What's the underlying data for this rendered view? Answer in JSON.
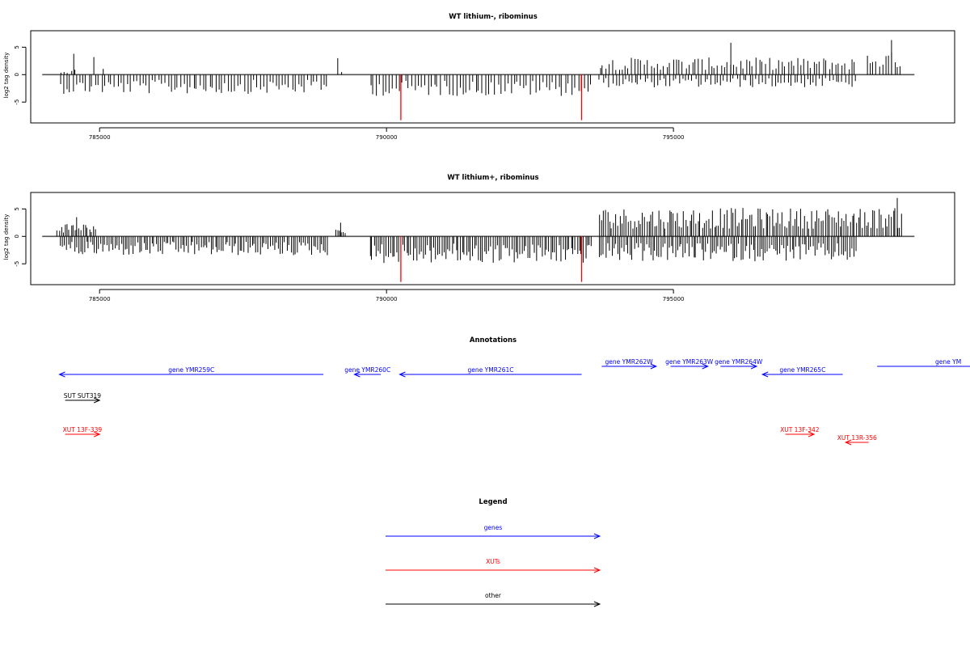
{
  "colors": {
    "gene": "#0000ff",
    "xut": "#ff0000",
    "other": "#000000",
    "marker": "#ff0000",
    "bar": "#000000",
    "axis": "#000000"
  },
  "chart_data": [
    {
      "type": "bar",
      "title": "WT lithium-, ribominus",
      "ylabel": "log2 tag density",
      "x_ticks": [
        {
          "value": 785000,
          "label": "785000"
        },
        {
          "value": 790000,
          "label": "790000"
        },
        {
          "value": 795000,
          "label": "795000"
        }
      ],
      "y_ticks": [
        {
          "value": 5,
          "label": "5"
        },
        {
          "value": 0,
          "label": "0"
        },
        {
          "value": -5,
          "label": "-5"
        }
      ],
      "xlim": [
        783800,
        799900
      ],
      "ylim": [
        -8.8,
        8.0
      ],
      "markers": [
        790250,
        793400
      ],
      "positive_segments": [
        [
          784300,
          784600,
          0.8
        ],
        [
          785050,
          785100,
          1.0
        ],
        [
          789200,
          789250,
          1.2
        ],
        [
          793700,
          798200,
          2.4
        ],
        [
          798350,
          799000,
          3.2
        ]
      ],
      "negative_segments": [
        [
          784300,
          789000,
          2.7
        ],
        [
          789700,
          793600,
          3.0
        ],
        [
          793700,
          798200,
          1.8
        ]
      ],
      "spikes": [
        [
          784550,
          3.8
        ],
        [
          784900,
          3.2
        ],
        [
          789150,
          3.0
        ],
        [
          798800,
          6.3
        ],
        [
          796000,
          5.8
        ]
      ],
      "series": [
        {
          "start": 784000,
          "end": 799200
        }
      ]
    },
    {
      "type": "bar",
      "title": "WT lithium+, ribominus",
      "ylabel": "log2 tag density",
      "x_ticks": [
        {
          "value": 785000,
          "label": "785000"
        },
        {
          "value": 790000,
          "label": "790000"
        },
        {
          "value": 795000,
          "label": "795000"
        }
      ],
      "y_ticks": [
        {
          "value": 5,
          "label": "5"
        },
        {
          "value": 0,
          "label": "0"
        },
        {
          "value": -5,
          "label": "-5"
        }
      ],
      "xlim": [
        783800,
        799900
      ],
      "ylim": [
        -8.8,
        8.0
      ],
      "markers": [
        790250,
        793400
      ],
      "positive_segments": [
        [
          784250,
          784950,
          1.9
        ],
        [
          789100,
          789300,
          1.0
        ],
        [
          793700,
          799000,
          4.0
        ]
      ],
      "negative_segments": [
        [
          784300,
          789000,
          2.7
        ],
        [
          789700,
          793600,
          3.8
        ],
        [
          793700,
          798200,
          3.5
        ]
      ],
      "spikes": [
        [
          784600,
          3.5
        ],
        [
          789200,
          2.5
        ],
        [
          798900,
          7.0
        ]
      ],
      "series": [
        {
          "start": 784000,
          "end": 799200
        }
      ]
    }
  ],
  "annotations": {
    "title": "Annotations",
    "items": [
      {
        "label": "gene YMR259C",
        "kind": "gene",
        "start": 784300,
        "end": 788900,
        "dir": "left",
        "row": 1
      },
      {
        "label": "gene YMR260C",
        "kind": "gene",
        "start": 789440,
        "end": 789900,
        "dir": "left",
        "row": 1
      },
      {
        "label": "gene YMR261C",
        "kind": "gene",
        "start": 790230,
        "end": 793400,
        "dir": "left",
        "row": 1
      },
      {
        "label": "gene YMR262W",
        "kind": "gene",
        "start": 793750,
        "end": 794700,
        "dir": "right",
        "row": 0
      },
      {
        "label": "gene YMR263W",
        "kind": "gene",
        "start": 794950,
        "end": 795600,
        "dir": "right",
        "row": 0
      },
      {
        "label": "gene YMR264W",
        "kind": "gene",
        "start": 795820,
        "end": 796450,
        "dir": "right",
        "row": 0
      },
      {
        "label": "gene YMR265C",
        "kind": "gene",
        "start": 796550,
        "end": 797950,
        "dir": "left",
        "row": 1
      },
      {
        "label": "gene YM",
        "kind": "gene",
        "start": 798550,
        "end": 800500,
        "dir": "right",
        "row": 0
      },
      {
        "label": "SUT SUT319",
        "kind": "other",
        "start": 784400,
        "end": 785000,
        "dir": "right",
        "row": 2
      },
      {
        "label": "XUT 13F-339",
        "kind": "xut",
        "start": 784400,
        "end": 785000,
        "dir": "right",
        "row": 3
      },
      {
        "label": "XUT 13F-342",
        "kind": "xut",
        "start": 796950,
        "end": 797450,
        "dir": "right",
        "row": 3
      },
      {
        "label": "XUT 13R-356",
        "kind": "xut",
        "start": 798000,
        "end": 798400,
        "dir": "left",
        "row": 4
      }
    ]
  },
  "legend": {
    "title": "Legend",
    "items": [
      {
        "label": "genes",
        "kind": "gene"
      },
      {
        "label": "XUTs",
        "kind": "xut"
      },
      {
        "label": "other",
        "kind": "other"
      }
    ]
  }
}
